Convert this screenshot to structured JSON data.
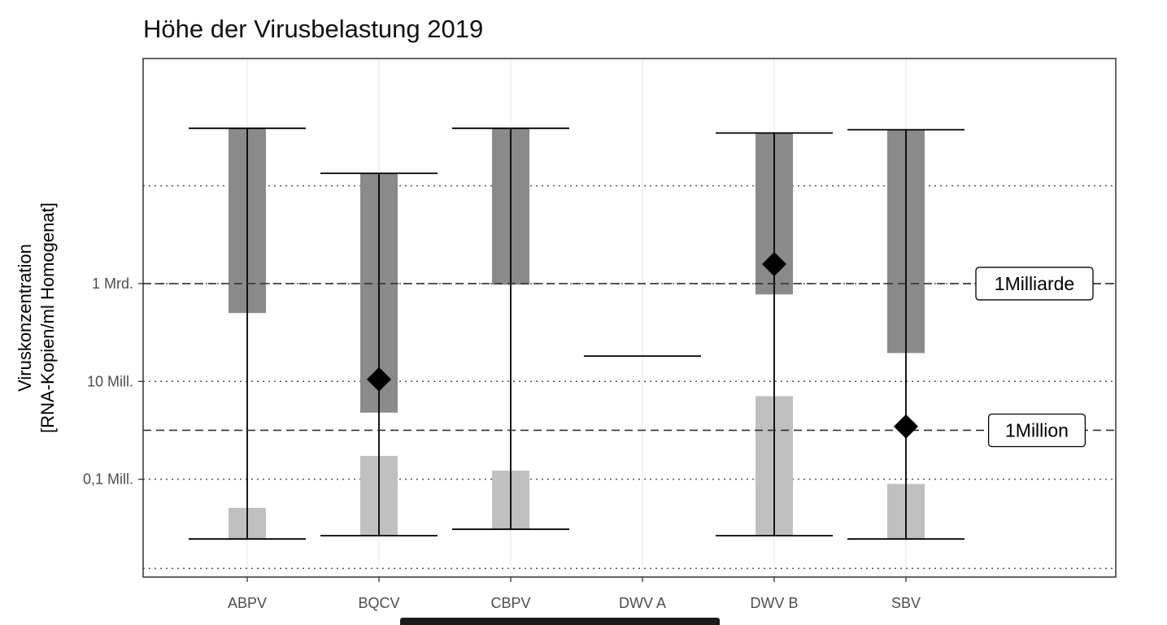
{
  "chart_data": {
    "type": "range-bar",
    "title": "Höhe der Virusbelastung 2019",
    "ylabel_lines": [
      "Viruskonzentration",
      "[RNA-Kopien/ml Homogenat]"
    ],
    "xlabel": "",
    "y_scale": "log10",
    "ylim": [
      1000,
      40000000000000
    ],
    "y_ticks": [
      {
        "value": 100000,
        "label": "0,1 Mill."
      },
      {
        "value": 10000000,
        "label": "10 Mill."
      },
      {
        "value": 1000000000,
        "label": "1 Mrd."
      }
    ],
    "dotted_gridlines": [
      1500,
      100000,
      10000000,
      1000000000,
      100000000000
    ],
    "categories": [
      "ABPV",
      "BQCV",
      "CBPV",
      "DWV A",
      "DWV B",
      "SBV"
    ],
    "series": [
      {
        "category": "ABPV",
        "min": 6000,
        "max": 1500000000000,
        "dark_bar": [
          250000000,
          1500000000000
        ],
        "light_bar": [
          6000,
          26000
        ],
        "median": null
      },
      {
        "category": "BQCV",
        "min": 7000,
        "max": 180000000000,
        "dark_bar": [
          2300000,
          180000000000
        ],
        "light_bar": [
          7000,
          300000
        ],
        "median": 11000000
      },
      {
        "category": "CBPV",
        "min": 9500,
        "max": 1500000000000,
        "dark_bar": [
          950000000,
          1500000000000
        ],
        "light_bar": [
          9500,
          150000
        ],
        "median": null
      },
      {
        "category": "DWV A",
        "min": 33000000,
        "max": 33000000,
        "dark_bar": null,
        "light_bar": null,
        "median": null
      },
      {
        "category": "DWV B",
        "min": 7000,
        "max": 1200000000000,
        "dark_bar": [
          600000000,
          1200000000000
        ],
        "light_bar": [
          7000,
          5000000
        ],
        "median": 2500000000
      },
      {
        "category": "SBV",
        "min": 6000,
        "max": 1400000000000,
        "dark_bar": [
          38000000,
          1400000000000
        ],
        "light_bar": [
          6000,
          80000
        ],
        "median": 1200000
      }
    ],
    "reference_lines": [
      {
        "value": 1000000000,
        "label": "1Milliarde"
      },
      {
        "value": 1000000,
        "label": "1Million"
      }
    ],
    "colors": {
      "dark_bar": "#8a8a8a",
      "light_bar": "#c0c0c0",
      "range_line": "#000000",
      "median_marker": "#000000",
      "grid_major": "#ebebeb",
      "panel_border": "#333333"
    }
  }
}
